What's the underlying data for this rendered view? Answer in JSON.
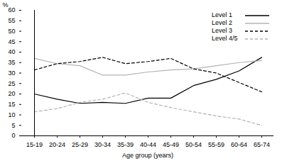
{
  "chart_data": {
    "type": "line",
    "x_label": "Age group (years)",
    "y_label": "%",
    "categories": [
      "15-19",
      "20-24",
      "25-29",
      "30-34",
      "35-39",
      "40-44",
      "45-49",
      "50-54",
      "55-59",
      "60-64",
      "65-74"
    ],
    "series": [
      {
        "name": "Level 1",
        "color": "#000000",
        "line_style": "solid",
        "values": [
          20,
          17.5,
          15.5,
          16,
          15.5,
          18,
          18,
          24,
          27,
          31,
          37.5
        ]
      },
      {
        "name": "Level 2",
        "color": "#b3b3b3",
        "line_style": "solid",
        "values": [
          37,
          34.5,
          33.5,
          29,
          29,
          30.5,
          31.5,
          32,
          33.5,
          35,
          36
        ]
      },
      {
        "name": "Level 3",
        "color": "#000000",
        "line_style": "dashed",
        "values": [
          31.5,
          34.5,
          35.5,
          37.5,
          34.5,
          35.5,
          37,
          32,
          30,
          25.5,
          21
        ]
      },
      {
        "name": "Level 4/5",
        "color": "#b3b3b3",
        "line_style": "dashed",
        "values": [
          11.5,
          13,
          16,
          17.5,
          20.5,
          16,
          13.5,
          11.5,
          9.5,
          8,
          5
        ]
      }
    ],
    "ylim": [
      0,
      60
    ],
    "yticks": [
      0,
      5,
      10,
      15,
      20,
      25,
      30,
      35,
      40,
      45,
      50,
      55,
      60
    ],
    "grid": false,
    "legend": "top-right"
  }
}
